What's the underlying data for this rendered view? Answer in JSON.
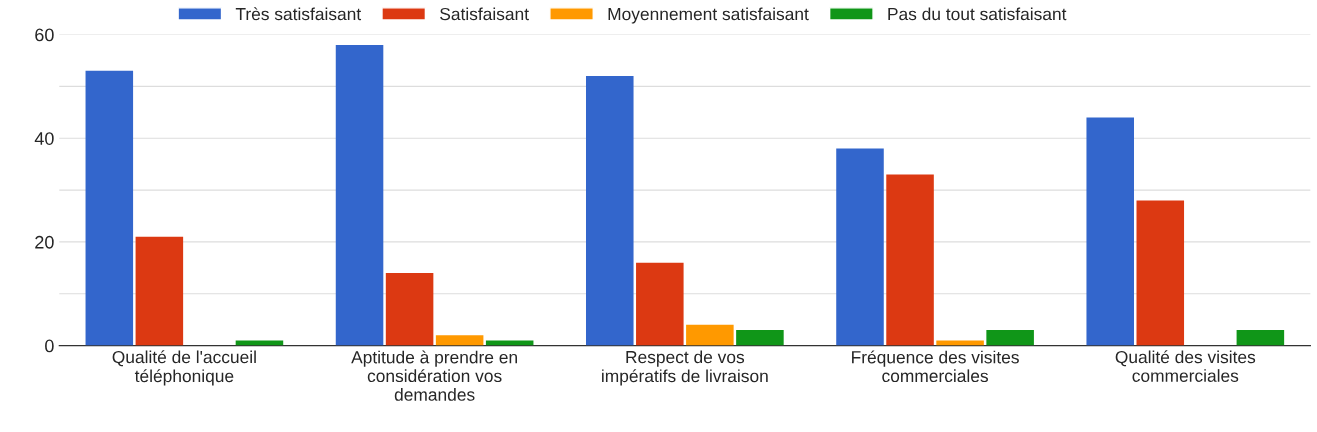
{
  "chart_data": {
    "type": "bar",
    "categories": [
      "Qualité de l'accueil téléphonique",
      "Aptitude à prendre en considération vos demandes",
      "Respect de vos impératifs de livraison",
      "Fréquence des visites commerciales",
      "Qualité des visites commerciales"
    ],
    "series": [
      {
        "name": "Très satisfaisant",
        "color": "#3366cc",
        "values": [
          53,
          58,
          52,
          38,
          44
        ]
      },
      {
        "name": "Satisfaisant",
        "color": "#dc3912",
        "values": [
          21,
          14,
          16,
          33,
          28
        ]
      },
      {
        "name": "Moyennement satisfaisant",
        "color": "#ff9900",
        "values": [
          0,
          2,
          4,
          1,
          0
        ]
      },
      {
        "name": "Pas du tout satisfaisant",
        "color": "#109618",
        "values": [
          1,
          1,
          3,
          3,
          3
        ]
      }
    ],
    "ylim": [
      0,
      60
    ],
    "yticks": [
      0,
      {
        "value": 10,
        "label": null
      },
      20,
      {
        "value": 30,
        "label": null
      },
      40,
      {
        "value": 50,
        "label": null
      },
      60
    ],
    "grid": "y",
    "legend": "top"
  }
}
